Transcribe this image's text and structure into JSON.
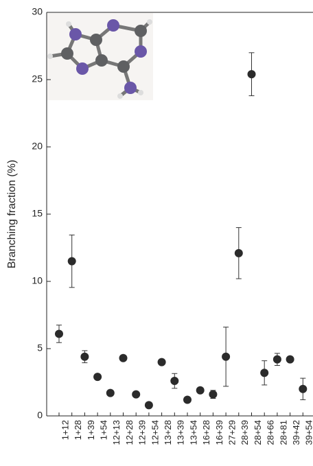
{
  "chart_data": {
    "type": "scatter",
    "y_label": "Branching fraction (%)",
    "categories": [
      "1+12",
      "1+28",
      "1+39",
      "1+54",
      "12+13",
      "12+28",
      "12+39",
      "12+54",
      "13+28",
      "13+39",
      "13+54",
      "16+28",
      "16+39",
      "27+29",
      "28+39",
      "28+54",
      "28+66",
      "28+81",
      "39+42",
      "39+54"
    ],
    "values": [
      6.1,
      11.5,
      4.4,
      2.9,
      1.7,
      4.3,
      1.6,
      0.8,
      4.0,
      2.6,
      1.2,
      1.9,
      1.6,
      4.4,
      12.1,
      25.4,
      3.2,
      4.2,
      4.2,
      2.0
    ],
    "errors": [
      0.65,
      1.95,
      0.45,
      0.1,
      0.1,
      0.2,
      0.1,
      0.1,
      0.15,
      0.55,
      0.1,
      0.1,
      0.3,
      2.2,
      1.9,
      1.6,
      0.9,
      0.45,
      0.1,
      0.8
    ],
    "color": "#2b2b2b",
    "ylim": [
      0,
      30
    ],
    "yticks": [
      0,
      5,
      10,
      15,
      20,
      25,
      30
    ]
  }
}
